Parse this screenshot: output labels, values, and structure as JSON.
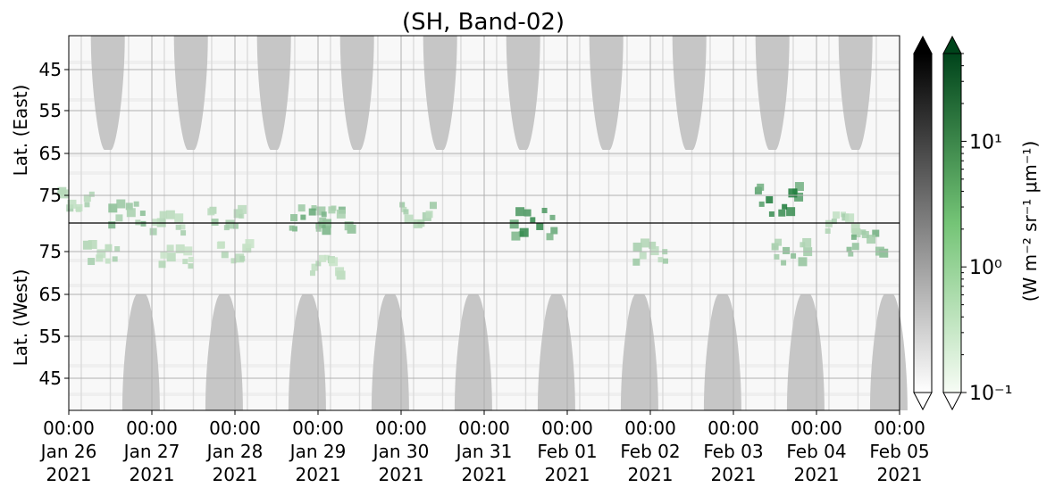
{
  "chart_data": {
    "type": "heatmap",
    "title": "(SH, Band-02)",
    "top_panel": {
      "ylabel": "Lat. (East)",
      "yticks": [
        "45",
        "55",
        "65",
        "75"
      ]
    },
    "bottom_panel": {
      "ylabel": "Lat. (West)",
      "yticks": [
        "75",
        "65",
        "55",
        "45"
      ]
    },
    "x_ticks": [
      {
        "time": "00:00",
        "date": "Jan 26",
        "year": "2021"
      },
      {
        "time": "00:00",
        "date": "Jan 27",
        "year": "2021"
      },
      {
        "time": "00:00",
        "date": "Jan 28",
        "year": "2021"
      },
      {
        "time": "00:00",
        "date": "Jan 29",
        "year": "2021"
      },
      {
        "time": "00:00",
        "date": "Jan 30",
        "year": "2021"
      },
      {
        "time": "00:00",
        "date": "Jan 31",
        "year": "2021"
      },
      {
        "time": "00:00",
        "date": "Feb 01",
        "year": "2021"
      },
      {
        "time": "00:00",
        "date": "Feb 02",
        "year": "2021"
      },
      {
        "time": "00:00",
        "date": "Feb 03",
        "year": "2021"
      },
      {
        "time": "00:00",
        "date": "Feb 04",
        "year": "2021"
      },
      {
        "time": "00:00",
        "date": "Feb 05",
        "year": "2021"
      }
    ],
    "colorbar": {
      "label": "(W m⁻² sr⁻¹ μm⁻¹)",
      "ticks": [
        {
          "label": "10¹",
          "value": 10
        },
        {
          "label": "10⁰",
          "value": 1
        },
        {
          "label": "10⁻¹",
          "value": 0.1
        }
      ],
      "scale": "log",
      "range": [
        0.1,
        50
      ],
      "gray_cmap": [
        "#ffffff",
        "#000000"
      ],
      "green_cmap": [
        "#f7fcf5",
        "#00441b"
      ]
    },
    "daylight_lobes_top_day": [
      0.47,
      1.47,
      2.47,
      3.47,
      4.47,
      5.47,
      6.47,
      7.47,
      8.47,
      9.47
    ],
    "daylight_lobes_bottom_day": [
      0.87,
      1.87,
      2.87,
      3.87,
      4.87,
      5.87,
      6.87,
      7.87,
      8.87,
      9.87
    ],
    "green_patches": [
      {
        "day": 0.1,
        "lat": 74,
        "panel": "top",
        "intensity": 0.3
      },
      {
        "day": 0.7,
        "lat": 77,
        "panel": "top",
        "intensity": 0.5
      },
      {
        "day": 1.2,
        "lat": 79,
        "panel": "top",
        "intensity": 0.3
      },
      {
        "day": 1.9,
        "lat": 78,
        "panel": "top",
        "intensity": 0.35
      },
      {
        "day": 2.9,
        "lat": 78,
        "panel": "top",
        "intensity": 0.6
      },
      {
        "day": 3.2,
        "lat": 78,
        "panel": "top",
        "intensity": 0.5
      },
      {
        "day": 4.2,
        "lat": 77,
        "panel": "top",
        "intensity": 0.35
      },
      {
        "day": 5.6,
        "lat": 79,
        "panel": "top",
        "intensity": 0.85
      },
      {
        "day": 8.55,
        "lat": 74,
        "panel": "top",
        "intensity": 0.95
      },
      {
        "day": 9.3,
        "lat": 79,
        "panel": "top",
        "intensity": 0.3
      },
      {
        "day": 0.4,
        "lat": 76,
        "panel": "bottom",
        "intensity": 0.3
      },
      {
        "day": 1.3,
        "lat": 75,
        "panel": "bottom",
        "intensity": 0.25
      },
      {
        "day": 2.0,
        "lat": 76,
        "panel": "bottom",
        "intensity": 0.25
      },
      {
        "day": 3.1,
        "lat": 73,
        "panel": "bottom",
        "intensity": 0.25
      },
      {
        "day": 7.0,
        "lat": 76,
        "panel": "bottom",
        "intensity": 0.35
      },
      {
        "day": 8.7,
        "lat": 76,
        "panel": "bottom",
        "intensity": 0.45
      },
      {
        "day": 9.6,
        "lat": 78,
        "panel": "bottom",
        "intensity": 0.55
      }
    ]
  }
}
